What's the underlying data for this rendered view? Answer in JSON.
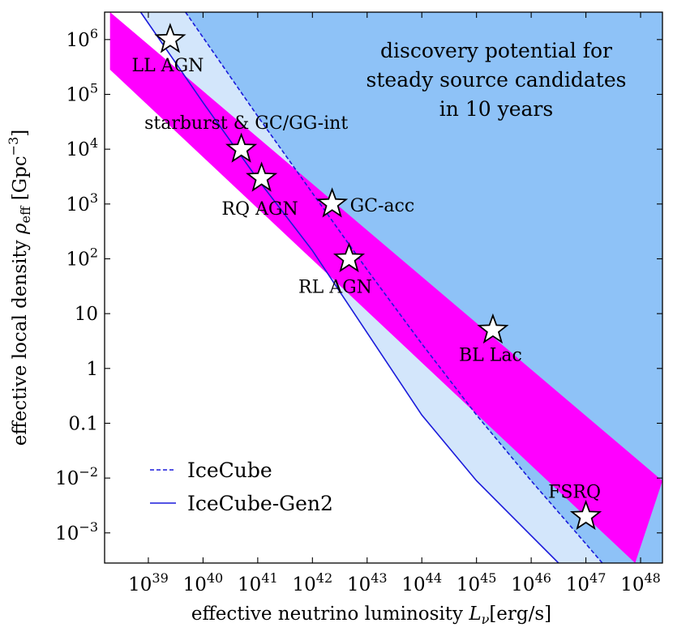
{
  "chart_data": {
    "type": "line",
    "xlabel_main": "effective neutrino luminosity ",
    "xlabel_var": "L",
    "xlabel_sub": "ν",
    "xlabel_unit": "[erg/s]",
    "ylabel_main": "effective local density ",
    "ylabel_var": "ρ",
    "ylabel_sub": "eff",
    "ylabel_unit": " [Gpc",
    "ylabel_exp": "−3",
    "ylabel_close": "]",
    "x_scale": "log",
    "y_scale": "log",
    "xlim_log10": [
      38.2,
      48.4
    ],
    "ylim_log10": [
      -3.55,
      6.5
    ],
    "x_ticks": [
      {
        "base": "10",
        "exp": "39",
        "log": 39
      },
      {
        "base": "10",
        "exp": "40",
        "log": 40
      },
      {
        "base": "10",
        "exp": "41",
        "log": 41
      },
      {
        "base": "10",
        "exp": "42",
        "log": 42
      },
      {
        "base": "10",
        "exp": "43",
        "log": 43
      },
      {
        "base": "10",
        "exp": "44",
        "log": 44
      },
      {
        "base": "10",
        "exp": "45",
        "log": 45
      },
      {
        "base": "10",
        "exp": "46",
        "log": 46
      },
      {
        "base": "10",
        "exp": "47",
        "log": 47
      },
      {
        "base": "10",
        "exp": "48",
        "log": 48
      }
    ],
    "y_ticks": [
      {
        "base": "10",
        "exp": "6",
        "log": 6
      },
      {
        "base": "10",
        "exp": "5",
        "log": 5
      },
      {
        "base": "10",
        "exp": "4",
        "log": 4
      },
      {
        "base": "10",
        "exp": "3",
        "log": 3
      },
      {
        "base": "10",
        "exp": "2",
        "log": 2
      },
      {
        "base": "10",
        "exp": "",
        "log": 1
      },
      {
        "base": "1",
        "exp": "",
        "log": 0
      },
      {
        "base": "0.1",
        "exp": "",
        "log": -1
      },
      {
        "base": "10",
        "exp": "−2",
        "log": -2
      },
      {
        "base": "10",
        "exp": "−3",
        "log": -3
      }
    ],
    "annotation_lines": [
      "discovery potential for",
      "steady source candidates",
      "in 10 years"
    ],
    "series": [
      {
        "name": "IceCube",
        "style": "dashed",
        "color": "#1a1adb",
        "points_log10": [
          [
            39.68,
            6.5
          ],
          [
            41,
            4.6
          ],
          [
            42,
            3.2
          ],
          [
            43,
            1.8
          ],
          [
            44,
            0.45
          ],
          [
            45,
            -0.85
          ],
          [
            46,
            -2.05
          ],
          [
            47,
            -3.2
          ],
          [
            47.3,
            -3.55
          ]
        ]
      },
      {
        "name": "IceCube-Gen2",
        "style": "solid",
        "color": "#1a1adb",
        "points_log10": [
          [
            38.86,
            6.5
          ],
          [
            40,
            4.85
          ],
          [
            41,
            3.45
          ],
          [
            42,
            2.15
          ],
          [
            43,
            0.65
          ],
          [
            44,
            -0.85
          ],
          [
            45,
            -2.05
          ],
          [
            46,
            -3.05
          ],
          [
            46.5,
            -3.55
          ]
        ]
      }
    ],
    "band": {
      "name": "source band",
      "color": "#ff00ff",
      "upper_log10": [
        [
          38.3,
          6.5
        ],
        [
          48.4,
          -2.05
        ]
      ],
      "lower_log10": [
        [
          38.3,
          5.45
        ],
        [
          47.9,
          -3.55
        ]
      ]
    },
    "regions": [
      {
        "name": "IceCube-Gen2 discovery region",
        "color": "#d3e6fb"
      },
      {
        "name": "IceCube discovery region",
        "color": "#8ec2f7"
      }
    ],
    "sources": [
      {
        "name": "LL AGN",
        "x_log10": 39.4,
        "y_log10": 6.0,
        "label_pos": "below-left"
      },
      {
        "name": "starburst & GC/GG-int",
        "x_log10": 40.7,
        "y_log10": 4.0,
        "label_pos": "above"
      },
      {
        "name": "RQ AGN",
        "x_log10": 41.07,
        "y_log10": 3.47,
        "label_pos": "below-left"
      },
      {
        "name": "GC-acc",
        "x_log10": 42.36,
        "y_log10": 3.0,
        "label_pos": "right"
      },
      {
        "name": "RL AGN",
        "x_log10": 42.67,
        "y_log10": 2.0,
        "label_pos": "below"
      },
      {
        "name": "BL Lac",
        "x_log10": 45.3,
        "y_log10": 0.7,
        "label_pos": "below"
      },
      {
        "name": "FSRQ",
        "x_log10": 47.0,
        "y_log10": -2.7,
        "label_pos": "above"
      }
    ],
    "legend": {
      "placement": "lower-left",
      "entries": [
        {
          "label": "IceCube",
          "style": "dashed"
        },
        {
          "label": "IceCube-Gen2",
          "style": "solid"
        }
      ]
    }
  }
}
